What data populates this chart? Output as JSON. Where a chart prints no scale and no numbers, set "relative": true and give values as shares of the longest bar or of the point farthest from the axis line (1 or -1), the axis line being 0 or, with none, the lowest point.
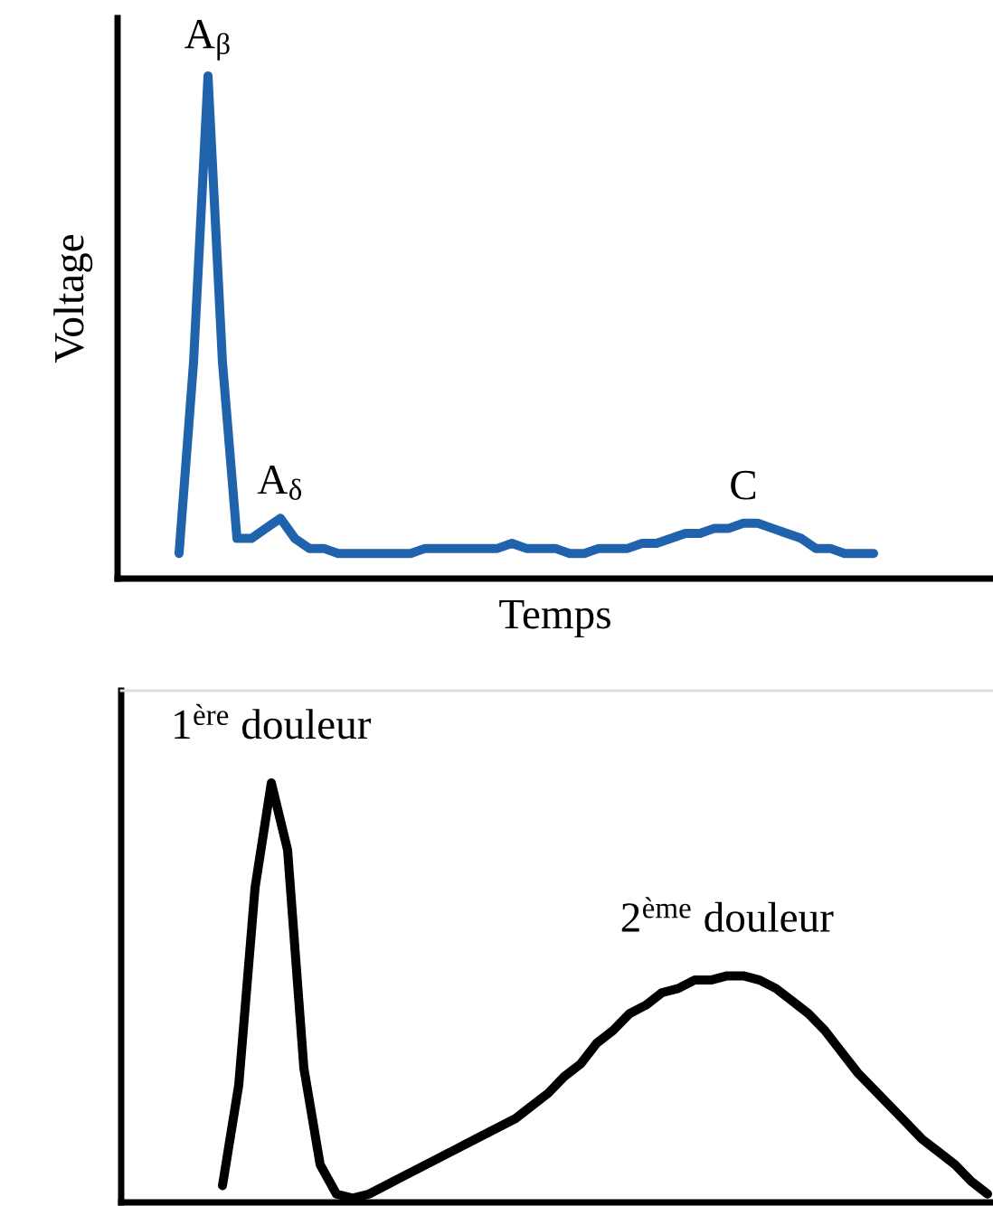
{
  "chart_data": [
    {
      "type": "line",
      "relative": true,
      "xlabel": "Temps",
      "ylabel": "Voltage",
      "categories": [
        null,
        null,
        null,
        null,
        null,
        null,
        null,
        null,
        null,
        null,
        null,
        null,
        null,
        null,
        null,
        null,
        null,
        null,
        null,
        null,
        null,
        null,
        null,
        null,
        null,
        null,
        null,
        null,
        null,
        null,
        null,
        null,
        null,
        null,
        null,
        null,
        null,
        null,
        null,
        null,
        null,
        null,
        null,
        null,
        null,
        null,
        null,
        null,
        null
      ],
      "series": [
        {
          "color": "#1f63ac",
          "values": [
            0.05,
            0.43,
            1,
            0.43,
            0.08,
            0.08,
            0.1,
            0.12,
            0.08,
            0.06,
            0.06,
            0.05,
            0.05,
            0.05,
            0.05,
            0.05,
            0.05,
            0.06,
            0.06,
            0.06,
            0.06,
            0.06,
            0.06,
            0.07,
            0.06,
            0.06,
            0.06,
            0.05,
            0.05,
            0.06,
            0.06,
            0.06,
            0.07,
            0.07,
            0.08,
            0.09,
            0.09,
            0.1,
            0.1,
            0.11,
            0.11,
            0.1,
            0.09,
            0.08,
            0.06,
            0.06,
            0.05,
            0.05,
            0.05
          ]
        }
      ],
      "annotations": [
        {
          "text": "A$_{β}$",
          "y": 1
        },
        {
          "text": "A$_{δ}$",
          "y": 0.12
        },
        {
          "text": "C",
          "y": 0.11
        }
      ]
    },
    {
      "type": "line",
      "relative": true,
      "categories": [
        null,
        null,
        null,
        null,
        null,
        null,
        null,
        null,
        null,
        null,
        null,
        null,
        null,
        null,
        null,
        null,
        null,
        null,
        null,
        null,
        null,
        null,
        null,
        null,
        null,
        null,
        null,
        null,
        null,
        null,
        null,
        null,
        null,
        null,
        null,
        null,
        null,
        null,
        null,
        null,
        null,
        null,
        null,
        null,
        null,
        null,
        null,
        null
      ],
      "series": [
        {
          "color": "#000000",
          "values": [
            0.04,
            0.28,
            0.75,
            1,
            0.84,
            0.32,
            0.09,
            0.02,
            0.01,
            0.02,
            0.04,
            0.06,
            0.08,
            0.1,
            0.12,
            0.14,
            0.16,
            0.18,
            0.2,
            0.23,
            0.26,
            0.3,
            0.33,
            0.38,
            0.41,
            0.45,
            0.47,
            0.5,
            0.51,
            0.53,
            0.53,
            0.54,
            0.54,
            0.53,
            0.51,
            0.48,
            0.45,
            0.41,
            0.36,
            0.31,
            0.27,
            0.23,
            0.19,
            0.15,
            0.12,
            0.09,
            0.05,
            0.02
          ]
        }
      ],
      "annotations": [
        {
          "text": "1$^{ère}$ douleur",
          "y": 1
        },
        {
          "text": "2$^{ème}$ douleur",
          "y": 0.54
        }
      ]
    }
  ]
}
